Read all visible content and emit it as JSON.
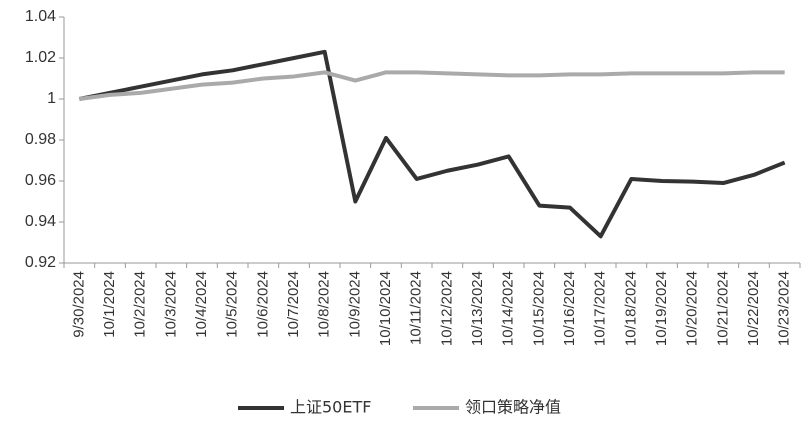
{
  "chart_data": {
    "type": "line",
    "categories": [
      "9/30/2024",
      "10/1/2024",
      "10/2/2024",
      "10/3/2024",
      "10/4/2024",
      "10/5/2024",
      "10/6/2024",
      "10/7/2024",
      "10/8/2024",
      "10/9/2024",
      "10/10/2024",
      "10/11/2024",
      "10/12/2024",
      "10/13/2024",
      "10/14/2024",
      "10/15/2024",
      "10/16/2024",
      "10/17/2024",
      "10/18/2024",
      "10/19/2024",
      "10/20/2024",
      "10/21/2024",
      "10/22/2024",
      "10/23/2024"
    ],
    "series": [
      {
        "name": "上证50ETF",
        "color": "#333333",
        "values": [
          1.0,
          1.003,
          1.006,
          1.009,
          1.012,
          1.014,
          1.017,
          1.02,
          1.023,
          0.95,
          0.981,
          0.961,
          0.965,
          0.968,
          0.972,
          0.948,
          0.947,
          0.933,
          0.961,
          0.96,
          0.9597,
          0.959,
          0.963,
          0.969
        ]
      },
      {
        "name": "领口策略净值",
        "color": "#aaaaaa",
        "values": [
          1.0,
          1.002,
          1.003,
          1.005,
          1.007,
          1.008,
          1.01,
          1.011,
          1.013,
          1.009,
          1.013,
          1.013,
          1.0125,
          1.012,
          1.0115,
          1.0115,
          1.012,
          1.012,
          1.0125,
          1.0125,
          1.0125,
          1.0125,
          1.013,
          1.013
        ]
      }
    ],
    "ylim": [
      0.92,
      1.04
    ],
    "yticks": [
      0.92,
      0.94,
      0.96,
      0.98,
      1,
      1.02,
      1.04
    ]
  }
}
